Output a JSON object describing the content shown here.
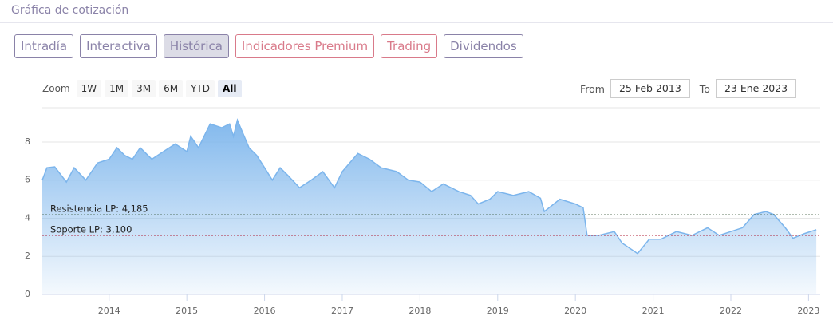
{
  "header": {
    "title": "Gráfica de cotización"
  },
  "tabs": [
    {
      "label": "Intradía",
      "color": "#8a82a8",
      "selected": false
    },
    {
      "label": "Interactiva",
      "color": "#8a82a8",
      "selected": false
    },
    {
      "label": "Histórica",
      "color": "#8a82a8",
      "selected": true
    },
    {
      "label": "Indicadores Premium",
      "color": "#d97a8a",
      "selected": false
    },
    {
      "label": "Trading",
      "color": "#d97a8a",
      "selected": false
    },
    {
      "label": "Dividendos",
      "color": "#8a82a8",
      "selected": false
    }
  ],
  "zoom": {
    "label": "Zoom",
    "options": [
      {
        "label": "1W",
        "selected": false
      },
      {
        "label": "1M",
        "selected": false
      },
      {
        "label": "3M",
        "selected": false
      },
      {
        "label": "6M",
        "selected": false
      },
      {
        "label": "YTD",
        "selected": false
      },
      {
        "label": "All",
        "selected": true
      }
    ]
  },
  "range": {
    "from_label": "From",
    "from": "25 Feb 2013",
    "to_label": "To",
    "to": "23 Ene 2023"
  },
  "chart_data": {
    "type": "area",
    "x": [
      2013.14,
      2013.2,
      2013.3,
      2013.45,
      2013.55,
      2013.7,
      2013.85,
      2014.0,
      2014.1,
      2014.2,
      2014.3,
      2014.4,
      2014.55,
      2014.7,
      2014.85,
      2015.0,
      2015.05,
      2015.15,
      2015.3,
      2015.45,
      2015.55,
      2015.6,
      2015.65,
      2015.8,
      2015.9,
      2016.0,
      2016.1,
      2016.2,
      2016.3,
      2016.45,
      2016.6,
      2016.75,
      2016.9,
      2017.0,
      2017.2,
      2017.35,
      2017.5,
      2017.7,
      2017.85,
      2018.0,
      2018.15,
      2018.3,
      2018.5,
      2018.65,
      2018.75,
      2018.9,
      2019.0,
      2019.2,
      2019.4,
      2019.55,
      2019.6,
      2019.8,
      2020.0,
      2020.1,
      2020.15,
      2020.3,
      2020.5,
      2020.6,
      2020.8,
      2020.95,
      2021.1,
      2021.3,
      2021.5,
      2021.7,
      2021.85,
      2022.0,
      2022.15,
      2022.3,
      2022.45,
      2022.55,
      2022.7,
      2022.8,
      2022.95,
      2023.1
    ],
    "series": [
      {
        "color": "#7cb5ec",
        "values": [
          6.0,
          6.65,
          6.7,
          5.9,
          6.65,
          6.0,
          6.9,
          7.1,
          7.7,
          7.3,
          7.1,
          7.7,
          7.1,
          7.5,
          7.9,
          7.5,
          8.3,
          7.7,
          8.95,
          8.75,
          8.95,
          8.3,
          9.15,
          7.7,
          7.3,
          6.65,
          6.0,
          6.65,
          6.25,
          5.6,
          6.0,
          6.45,
          5.6,
          6.45,
          7.4,
          7.1,
          6.65,
          6.45,
          6.0,
          5.9,
          5.4,
          5.8,
          5.4,
          5.2,
          4.75,
          5.0,
          5.4,
          5.2,
          5.4,
          5.05,
          4.35,
          5.0,
          4.75,
          4.55,
          3.1,
          3.1,
          3.3,
          2.7,
          2.15,
          2.9,
          2.9,
          3.3,
          3.1,
          3.5,
          3.1,
          3.3,
          3.5,
          4.2,
          4.35,
          4.2,
          3.5,
          2.95,
          3.2,
          3.4
        ]
      }
    ],
    "xlim": [
      2013.14,
      2023.15
    ],
    "xticks": [
      2014,
      2015,
      2016,
      2017,
      2018,
      2019,
      2020,
      2021,
      2022,
      2023
    ],
    "ylim": [
      0,
      9.8
    ],
    "yticks": [
      0,
      2,
      4,
      6,
      8
    ],
    "grid": true,
    "annotations": [
      {
        "label": "Resistencia LP: 4,185",
        "value": 4.185,
        "color": "#2f4f2f"
      },
      {
        "label": "Soporte LP: 3,100",
        "value": 3.1,
        "color": "#b0203a"
      }
    ]
  }
}
